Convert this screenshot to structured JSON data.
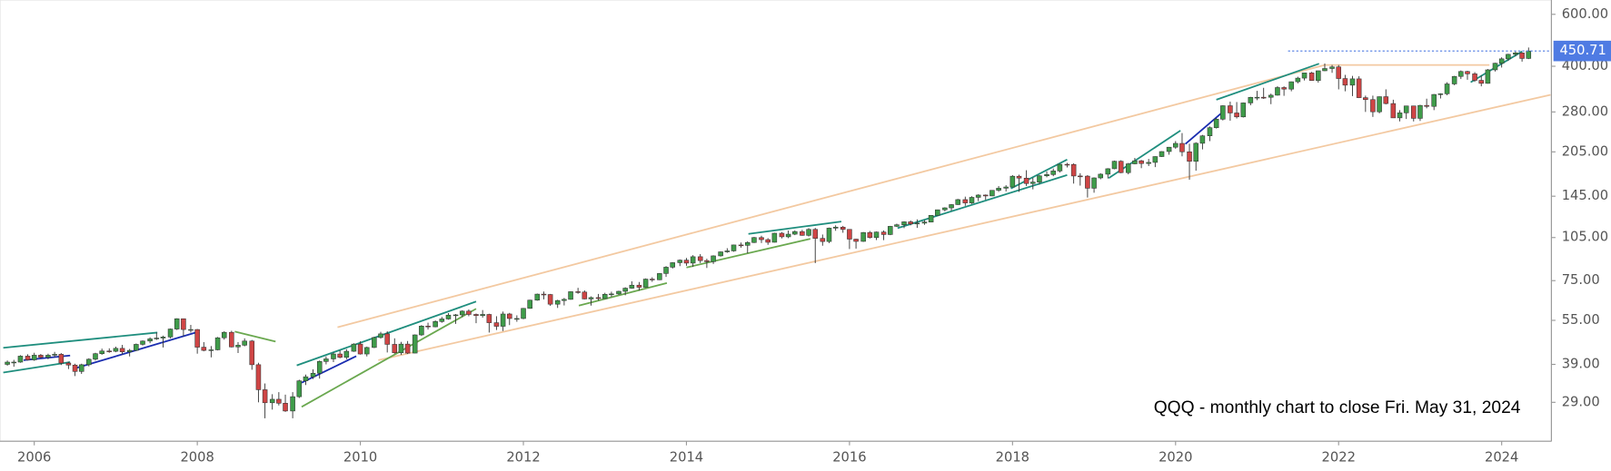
{
  "chart_data": {
    "type": "candlestick",
    "annotation": "QQQ - monthly chart to close Fri. May 31, 2024",
    "log_scale": true,
    "grid": false,
    "up_color": "#3f9c4a",
    "down_color": "#cf4545",
    "xlim": [
      2005.58,
      2024.61
    ],
    "xticks": [
      2006,
      2008,
      2010,
      2012,
      2014,
      2016,
      2018,
      2020,
      2022,
      2024
    ],
    "ylim": [
      21.4,
      671
    ],
    "yticks": [
      {
        "value": 29,
        "label": "29.00"
      },
      {
        "value": 39,
        "label": "39.00"
      },
      {
        "value": 55,
        "label": "55.00"
      },
      {
        "value": 75,
        "label": "75.00"
      },
      {
        "value": 105,
        "label": "105.00"
      },
      {
        "value": 145,
        "label": "145.00"
      },
      {
        "value": 205,
        "label": "205.00"
      },
      {
        "value": 280,
        "label": "280.00"
      },
      {
        "value": 400,
        "label": "400.00"
      },
      {
        "value": 600,
        "label": "600.00"
      }
    ],
    "last_price": {
      "value": 450.71,
      "label": "450.71",
      "color": "#4f7be3",
      "line_from": 2021.38
    },
    "x": [
      2005.67,
      2005.75,
      2005.83,
      2005.92,
      2006.0,
      2006.08,
      2006.17,
      2006.25,
      2006.33,
      2006.42,
      2006.5,
      2006.58,
      2006.67,
      2006.75,
      2006.83,
      2006.92,
      2007.0,
      2007.08,
      2007.17,
      2007.25,
      2007.33,
      2007.42,
      2007.5,
      2007.58,
      2007.67,
      2007.75,
      2007.83,
      2007.92,
      2008.0,
      2008.08,
      2008.17,
      2008.25,
      2008.33,
      2008.42,
      2008.5,
      2008.58,
      2008.67,
      2008.75,
      2008.83,
      2008.92,
      2009.0,
      2009.08,
      2009.17,
      2009.25,
      2009.33,
      2009.42,
      2009.5,
      2009.58,
      2009.67,
      2009.75,
      2009.83,
      2009.92,
      2010.0,
      2010.08,
      2010.17,
      2010.25,
      2010.33,
      2010.42,
      2010.5,
      2010.58,
      2010.67,
      2010.75,
      2010.83,
      2010.92,
      2011.0,
      2011.08,
      2011.17,
      2011.25,
      2011.33,
      2011.42,
      2011.5,
      2011.58,
      2011.67,
      2011.75,
      2011.83,
      2011.92,
      2012.0,
      2012.08,
      2012.17,
      2012.25,
      2012.33,
      2012.42,
      2012.5,
      2012.58,
      2012.67,
      2012.75,
      2012.83,
      2012.92,
      2013.0,
      2013.08,
      2013.17,
      2013.25,
      2013.33,
      2013.42,
      2013.5,
      2013.58,
      2013.67,
      2013.75,
      2013.83,
      2013.92,
      2014.0,
      2014.08,
      2014.17,
      2014.25,
      2014.33,
      2014.42,
      2014.5,
      2014.58,
      2014.67,
      2014.75,
      2014.83,
      2014.92,
      2015.0,
      2015.08,
      2015.17,
      2015.25,
      2015.33,
      2015.42,
      2015.5,
      2015.58,
      2015.67,
      2015.75,
      2015.83,
      2015.92,
      2016.0,
      2016.08,
      2016.17,
      2016.25,
      2016.33,
      2016.42,
      2016.5,
      2016.58,
      2016.67,
      2016.75,
      2016.83,
      2016.92,
      2017.0,
      2017.08,
      2017.17,
      2017.25,
      2017.33,
      2017.42,
      2017.5,
      2017.58,
      2017.67,
      2017.75,
      2017.83,
      2017.92,
      2018.0,
      2018.08,
      2018.17,
      2018.25,
      2018.33,
      2018.42,
      2018.5,
      2018.58,
      2018.67,
      2018.75,
      2018.83,
      2018.92,
      2019.0,
      2019.08,
      2019.17,
      2019.25,
      2019.33,
      2019.42,
      2019.5,
      2019.58,
      2019.67,
      2019.75,
      2019.83,
      2019.92,
      2020.0,
      2020.08,
      2020.17,
      2020.25,
      2020.33,
      2020.42,
      2020.5,
      2020.58,
      2020.67,
      2020.75,
      2020.83,
      2020.92,
      2021.0,
      2021.08,
      2021.17,
      2021.25,
      2021.33,
      2021.42,
      2021.5,
      2021.58,
      2021.67,
      2021.75,
      2021.83,
      2021.92,
      2022.0,
      2022.08,
      2022.17,
      2022.25,
      2022.33,
      2022.42,
      2022.5,
      2022.58,
      2022.67,
      2022.75,
      2022.83,
      2022.92,
      2023.0,
      2023.08,
      2023.17,
      2023.25,
      2023.33,
      2023.42,
      2023.5,
      2023.58,
      2023.67,
      2023.75,
      2023.83,
      2023.92,
      2024.0,
      2024.08,
      2024.17,
      2024.25,
      2024.33
    ],
    "open": [
      39.0,
      39.7,
      39.7,
      41.6,
      40.4,
      41.9,
      41.2,
      41.9,
      42.2,
      39.4,
      38.8,
      36.9,
      38.9,
      40.6,
      42.4,
      43.3,
      43.2,
      44.2,
      43.0,
      43.5,
      45.6,
      46.8,
      47.6,
      47.9,
      48.3,
      51.4,
      55.7,
      51.2,
      51.2,
      44.6,
      43.5,
      43.7,
      48.0,
      50.1,
      44.7,
      45.3,
      46.8,
      38.9,
      32.0,
      28.9,
      29.7,
      28.8,
      27.1,
      30.3,
      34.3,
      35.4,
      36.4,
      39.9,
      40.7,
      42.3,
      41.2,
      43.2,
      45.7,
      42.3,
      44.5,
      48.1,
      49.5,
      45.6,
      42.7,
      45.7,
      42.6,
      49.1,
      52.6,
      52.3,
      54.5,
      55.6,
      57.3,
      57.4,
      59.1,
      57.6,
      57.1,
      57.6,
      54.0,
      52.5,
      57.8,
      55.8,
      55.8,
      60.4,
      64.4,
      67.5,
      67.3,
      62.4,
      64.2,
      64.8,
      68.8,
      68.6,
      65.0,
      65.7,
      65.2,
      67.4,
      67.6,
      69.0,
      70.7,
      72.4,
      71.2,
      75.9,
      75.5,
      79.3,
      83.3,
      86.3,
      88.0,
      86.0,
      90.4,
      87.7,
      87.0,
      91.0,
      93.9,
      94.6,
      99.1,
      98.8,
      101.0,
      105.0,
      103.3,
      101.2,
      108.6,
      105.6,
      107.8,
      110.0,
      106.8,
      111.9,
      104.3,
      101.8,
      113.0,
      113.9,
      111.9,
      103.7,
      101.9,
      109.2,
      105.0,
      109.6,
      107.5,
      114.6,
      116.0,
      118.7,
      116.8,
      117.5,
      118.5,
      124.9,
      130.4,
      132.4,
      135.8,
      141.2,
      137.6,
      143.7,
      146.3,
      145.3,
      151.8,
      154.4,
      155.8,
      169.5,
      167.0,
      160.1,
      161.9,
      170.0,
      171.7,
      176.6,
      186.0,
      185.8,
      169.8,
      169.6,
      154.3,
      167.3,
      172.2,
      179.7,
      190.5,
      174.3,
      186.7,
      191.2,
      187.2,
      188.8,
      197.6,
      205.5,
      212.6,
      219.0,
      205.1,
      190.4,
      219.2,
      232.3,
      247.6,
      264.6,
      293.9,
      277.8,
      269.4,
      300.4,
      313.7,
      314.0,
      313.9,
      319.1,
      338.7,
      334.6,
      354.4,
      364.6,
      379.7,
      357.9,
      386.1,
      393.0,
      397.9,
      363.4,
      345.1,
      362.5,
      313.0,
      308.3,
      280.3,
      315.4,
      298.9,
      267.3,
      278.0,
      293.4,
      266.3,
      294.6,
      292.4,
      320.9,
      322.6,
      348.4,
      369.4,
      384.0,
      377.0,
      358.3,
      350.0,
      388.9,
      409.5,
      423.8,
      439.0,
      444.0,
      425.1
    ],
    "high": [
      40.2,
      40.4,
      41.9,
      42.2,
      42.7,
      42.3,
      42.4,
      43.0,
      42.6,
      39.8,
      39.2,
      39.2,
      40.9,
      42.7,
      44.1,
      44.2,
      44.8,
      45.4,
      44.0,
      45.9,
      47.0,
      48.2,
      50.0,
      48.8,
      51.6,
      55.9,
      55.8,
      53.1,
      51.4,
      46.4,
      45.0,
      48.3,
      50.5,
      50.7,
      46.4,
      47.8,
      47.2,
      39.5,
      33.6,
      30.9,
      31.4,
      30.8,
      31.4,
      34.6,
      36.0,
      37.5,
      40.2,
      41.5,
      42.8,
      43.5,
      43.9,
      46.0,
      46.7,
      44.8,
      48.4,
      50.3,
      50.5,
      47.8,
      46.5,
      46.8,
      49.3,
      53.0,
      54.0,
      55.0,
      56.5,
      58.2,
      57.8,
      59.5,
      59.9,
      58.0,
      59.6,
      57.9,
      56.8,
      58.9,
      58.3,
      57.2,
      60.6,
      64.6,
      67.8,
      68.9,
      67.6,
      64.6,
      65.5,
      69.0,
      70.9,
      69.5,
      66.3,
      67.6,
      68.2,
      68.8,
      69.3,
      71.2,
      74.6,
      74.2,
      76.3,
      77.0,
      79.6,
      84.0,
      86.6,
      88.5,
      89.5,
      91.5,
      92.3,
      89.0,
      91.4,
      94.2,
      96.6,
      99.4,
      101.0,
      102.0,
      105.5,
      106.5,
      104.5,
      109.0,
      109.6,
      110.9,
      111.0,
      111.5,
      113.0,
      113.2,
      107.5,
      113.5,
      115.5,
      115.0,
      112.0,
      104.0,
      109.6,
      110.5,
      110.0,
      111.0,
      115.0,
      117.0,
      119.2,
      120.0,
      121.0,
      120.3,
      125.0,
      130.6,
      133.0,
      136.4,
      142.0,
      144.5,
      145.0,
      147.2,
      147.0,
      152.0,
      157.0,
      158.0,
      171.0,
      171.5,
      177.6,
      167.5,
      171.0,
      176.0,
      180.0,
      186.5,
      188.0,
      187.5,
      173.5,
      171.0,
      168.0,
      173.5,
      180.5,
      191.5,
      192.0,
      188.0,
      195.5,
      192.5,
      194.0,
      198.0,
      206.0,
      213.0,
      223.0,
      237.5,
      218.5,
      221.0,
      234.0,
      250.0,
      267.0,
      295.0,
      303.5,
      302.5,
      301.5,
      315.0,
      330.0,
      338.0,
      323.0,
      342.5,
      342.0,
      355.0,
      368.5,
      380.0,
      382.8,
      386.5,
      408.7,
      404.0,
      404.0,
      374.0,
      371.0,
      370.0,
      318.0,
      318.0,
      316.0,
      334.0,
      308.0,
      284.0,
      294.0,
      294.0,
      296.0,
      310.5,
      322.0,
      324.0,
      353.0,
      371.0,
      387.0,
      386.0,
      382.0,
      372.0,
      391.5,
      411.0,
      429.0,
      441.0,
      449.3,
      446.0,
      463.0
    ],
    "low": [
      38.6,
      38.3,
      39.5,
      40.2,
      40.1,
      40.8,
      40.6,
      41.3,
      38.8,
      37.6,
      35.6,
      36.2,
      38.4,
      40.2,
      42.0,
      42.7,
      42.9,
      42.2,
      41.5,
      43.3,
      45.2,
      46.0,
      47.2,
      44.5,
      47.8,
      51.0,
      48.5,
      50.0,
      42.4,
      43.2,
      41.2,
      43.5,
      47.3,
      44.5,
      42.6,
      44.9,
      37.4,
      29.0,
      25.6,
      27.4,
      28.3,
      26.9,
      25.6,
      30.0,
      33.2,
      34.8,
      34.9,
      39.0,
      39.7,
      40.9,
      40.6,
      43.0,
      42.1,
      41.5,
      44.3,
      47.7,
      42.8,
      42.4,
      42.0,
      42.3,
      42.5,
      48.7,
      51.2,
      52.1,
      54.0,
      55.3,
      53.5,
      56.4,
      56.8,
      53.8,
      56.2,
      50.0,
      51.0,
      50.6,
      53.0,
      54.4,
      55.5,
      60.2,
      64.1,
      64.8,
      61.6,
      60.6,
      61.8,
      64.6,
      67.7,
      64.8,
      61.7,
      64.2,
      65.0,
      66.0,
      67.1,
      66.9,
      70.4,
      69.4,
      71.0,
      74.3,
      75.3,
      77.2,
      82.4,
      84.0,
      84.2,
      83.5,
      86.0,
      82.8,
      85.4,
      90.5,
      93.2,
      94.0,
      97.0,
      92.9,
      100.6,
      100.6,
      99.2,
      101.0,
      104.3,
      104.5,
      107.0,
      106.5,
      105.8,
      86.0,
      98.5,
      100.5,
      110.7,
      109.0,
      96.0,
      96.3,
      101.5,
      104.2,
      103.0,
      102.9,
      107.0,
      114.0,
      113.0,
      115.5,
      113.2,
      116.0,
      118.2,
      124.6,
      128.8,
      129.4,
      135.4,
      134.5,
      136.5,
      139.5,
      141.0,
      145.0,
      150.0,
      150.5,
      155.5,
      150.0,
      157.0,
      153.0,
      159.0,
      168.0,
      169.5,
      174.5,
      181.5,
      160.0,
      157.5,
      143.5,
      149.0,
      165.5,
      166.5,
      179.0,
      173.5,
      172.0,
      186.0,
      180.5,
      183.5,
      182.0,
      197.0,
      200.5,
      210.0,
      198.0,
      164.9,
      177.0,
      209.0,
      223.0,
      246.0,
      262.0,
      261.5,
      266.0,
      268.0,
      295.0,
      307.0,
      310.0,
      297.5,
      318.0,
      317.5,
      329.0,
      350.0,
      358.0,
      357.0,
      352.0,
      385.0,
      380.0,
      334.0,
      329.0,
      317.0,
      312.0,
      280.0,
      269.3,
      277.0,
      297.0,
      267.0,
      260.1,
      265.0,
      260.0,
      261.0,
      288.0,
      284.0,
      311.0,
      319.0,
      345.0,
      362.0,
      360.0,
      354.0,
      342.0,
      349.0,
      384.0,
      396.0,
      417.0,
      432.0,
      414.7,
      423.0
    ],
    "close": [
      39.7,
      39.7,
      41.6,
      40.4,
      41.9,
      41.2,
      41.9,
      42.2,
      39.4,
      38.8,
      36.9,
      38.9,
      40.6,
      42.4,
      43.3,
      43.2,
      44.2,
      43.0,
      43.5,
      45.6,
      46.8,
      47.6,
      47.9,
      48.3,
      51.4,
      55.7,
      51.2,
      51.2,
      44.6,
      43.5,
      43.7,
      48.0,
      50.1,
      44.7,
      45.3,
      46.8,
      38.9,
      32.0,
      28.9,
      29.7,
      28.8,
      27.1,
      30.3,
      34.3,
      35.4,
      36.4,
      39.9,
      40.7,
      42.3,
      41.2,
      43.2,
      45.7,
      42.3,
      44.5,
      48.1,
      49.5,
      45.6,
      42.7,
      45.7,
      42.6,
      49.1,
      52.6,
      52.3,
      54.5,
      55.6,
      57.3,
      57.4,
      59.1,
      57.6,
      57.1,
      57.6,
      54.0,
      52.5,
      57.8,
      55.8,
      55.8,
      60.4,
      64.4,
      67.5,
      67.3,
      62.4,
      64.2,
      64.8,
      68.8,
      68.6,
      65.0,
      65.7,
      65.2,
      67.4,
      67.6,
      69.0,
      70.7,
      72.4,
      71.2,
      75.9,
      75.5,
      79.3,
      83.3,
      86.3,
      88.0,
      86.0,
      90.4,
      87.7,
      87.0,
      91.0,
      93.9,
      94.6,
      99.1,
      98.8,
      101.0,
      105.0,
      103.3,
      101.2,
      108.6,
      105.6,
      107.8,
      110.0,
      106.8,
      111.9,
      104.3,
      101.8,
      113.0,
      113.9,
      111.9,
      103.7,
      101.9,
      109.2,
      105.0,
      109.6,
      107.5,
      114.6,
      116.0,
      118.7,
      116.8,
      117.5,
      118.5,
      124.9,
      130.4,
      132.4,
      135.8,
      141.2,
      137.6,
      143.7,
      146.3,
      145.3,
      151.8,
      154.4,
      155.8,
      169.5,
      167.0,
      160.1,
      161.9,
      170.0,
      171.7,
      176.6,
      186.0,
      185.8,
      169.8,
      169.6,
      154.3,
      167.3,
      172.2,
      179.7,
      190.5,
      174.3,
      186.7,
      191.2,
      187.2,
      188.8,
      197.6,
      205.5,
      212.6,
      219.0,
      205.1,
      190.4,
      219.2,
      232.3,
      247.6,
      264.6,
      293.9,
      277.8,
      269.4,
      300.4,
      313.7,
      314.0,
      313.9,
      319.1,
      338.7,
      334.6,
      354.4,
      364.6,
      379.7,
      357.9,
      386.1,
      393.0,
      397.9,
      363.4,
      345.1,
      362.5,
      313.0,
      308.3,
      280.3,
      315.4,
      298.9,
      267.3,
      278.0,
      293.4,
      266.3,
      294.6,
      292.4,
      320.9,
      322.6,
      348.4,
      369.4,
      384.0,
      377.0,
      358.3,
      350.0,
      388.9,
      409.5,
      423.8,
      439.0,
      444.0,
      425.1,
      450.71
    ],
    "trendlines": [
      {
        "x": [
          2009.72,
          2021.83
        ],
        "y": [
          52.1,
          404
        ],
        "color": "#f3c9a1"
      },
      {
        "x": [
          2010.22,
          2024.6
        ],
        "y": [
          40.3,
          320
        ],
        "color": "#f3c9a1"
      },
      {
        "x": [
          2021.83,
          2023.85
        ],
        "y": [
          404,
          404
        ],
        "color": "#f3c9a1"
      },
      {
        "x": [
          2005.62,
          2007.51
        ],
        "y": [
          44.4,
          50.0
        ],
        "color": "#1f8e7e"
      },
      {
        "x": [
          2005.62,
          2006.44
        ],
        "y": [
          36.6,
          39.7
        ],
        "color": "#1f8e7e"
      },
      {
        "x": [
          2009.22,
          2011.42
        ],
        "y": [
          38.7,
          63.7
        ],
        "color": "#1f8e7e"
      },
      {
        "x": [
          2014.76,
          2015.9
        ],
        "y": [
          108,
          119
        ],
        "color": "#1f8e7e"
      },
      {
        "x": [
          2017.98,
          2018.67
        ],
        "y": [
          154,
          193
        ],
        "color": "#1f8e7e"
      },
      {
        "x": [
          2016.59,
          2018.67
        ],
        "y": [
          113,
          171
        ],
        "color": "#1f8e7e"
      },
      {
        "x": [
          2019.18,
          2020.06
        ],
        "y": [
          167,
          242
        ],
        "color": "#1f8e7e"
      },
      {
        "x": [
          2020.5,
          2021.76
        ],
        "y": [
          308,
          408
        ],
        "color": "#1f8e7e"
      },
      {
        "x": [
          2023.62,
          2024.25
        ],
        "y": [
          353,
          449
        ],
        "color": "#1f8e7e"
      },
      {
        "x": [
          2009.28,
          2011.42
        ],
        "y": [
          28.0,
          60.2
        ],
        "color": "#6aa84f"
      },
      {
        "x": [
          2014.0,
          2015.52
        ],
        "y": [
          83.1,
          104
        ],
        "color": "#6aa84f"
      },
      {
        "x": [
          2012.68,
          2013.76
        ],
        "y": [
          61.7,
          73.6
        ],
        "color": "#6aa84f"
      },
      {
        "x": [
          2008.46,
          2008.96
        ],
        "y": [
          50.4,
          46.6
        ],
        "color": "#6aa84f"
      },
      {
        "x": [
          2006.5,
          2008.02
        ],
        "y": [
          37.8,
          50.4
        ],
        "color": "#1a2db0"
      },
      {
        "x": [
          2009.28,
          2009.95
        ],
        "y": [
          33.8,
          41.6
        ],
        "color": "#1a2db0"
      },
      {
        "x": [
          2020.12,
          2020.56
        ],
        "y": [
          218,
          277
        ],
        "color": "#1a2db0"
      },
      {
        "x": [
          2005.87,
          2006.44
        ],
        "y": [
          40.3,
          41.8
        ],
        "color": "#1a2db0"
      }
    ]
  }
}
